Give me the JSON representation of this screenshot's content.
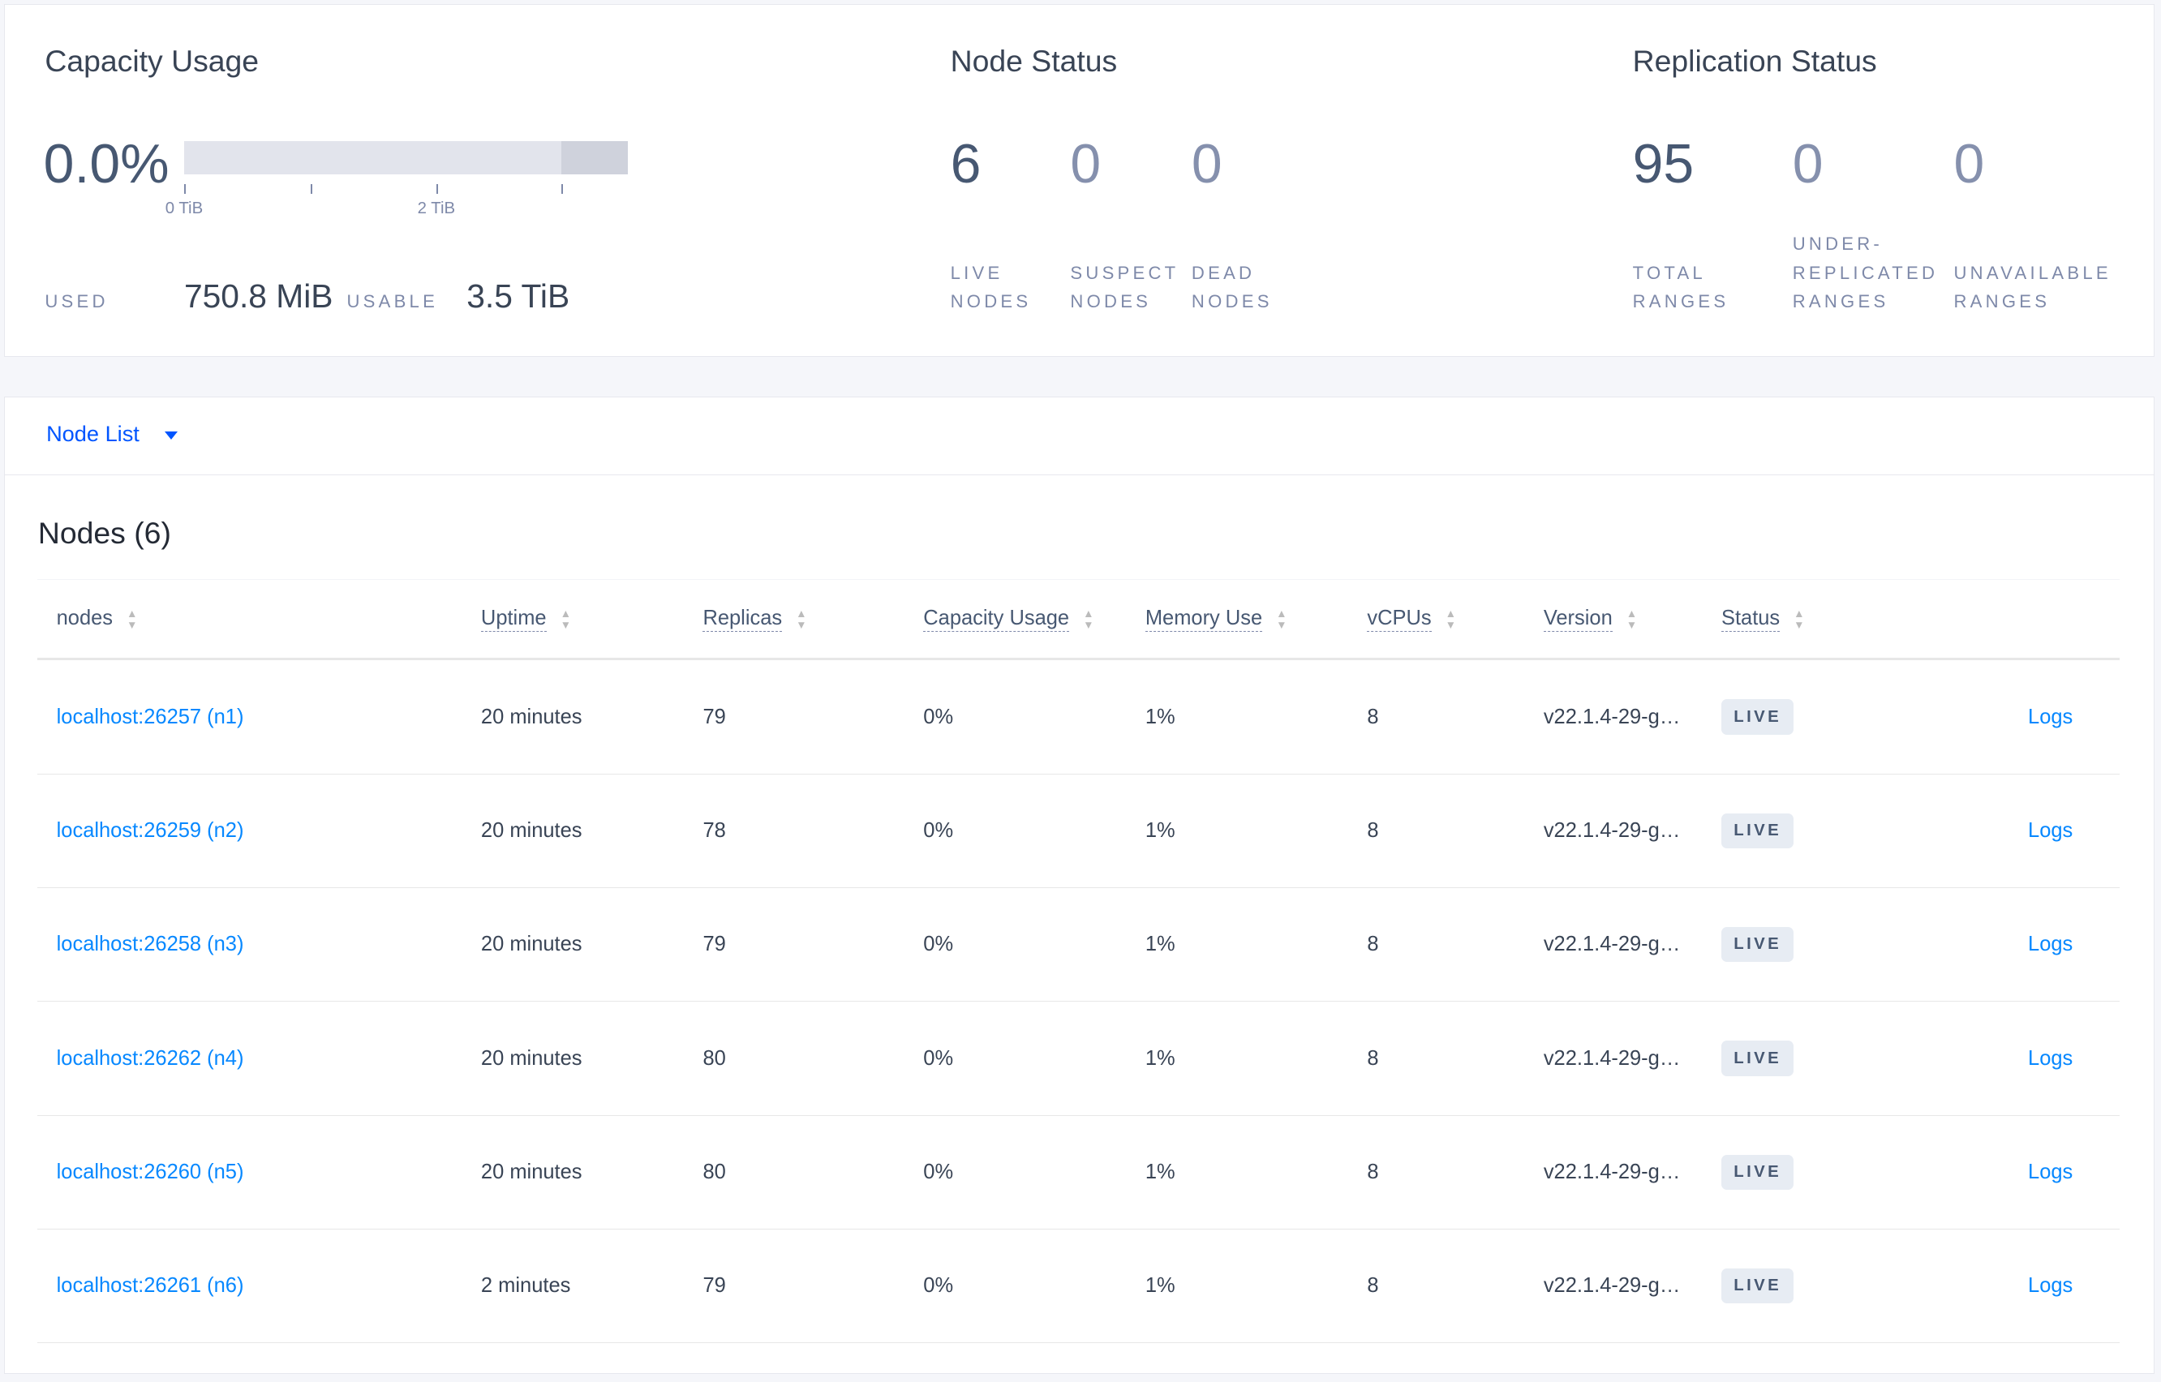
{
  "capacity": {
    "title": "Capacity Usage",
    "percent": "0.0%",
    "used_fraction": 0.0002,
    "usable_fraction_of_axis": 0.85,
    "ticks": [
      "0 TiB",
      "2 TiB"
    ],
    "used_label": "USED",
    "used_value": "750.8 MiB",
    "usable_label": "USABLE",
    "usable_value": "3.5 TiB"
  },
  "node_status": {
    "title": "Node Status",
    "stats": [
      {
        "value": "6",
        "l1": "LIVE",
        "l2": "NODES"
      },
      {
        "value": "0",
        "l1": "SUSPECT",
        "l2": "NODES"
      },
      {
        "value": "0",
        "l1": "DEAD",
        "l2": "NODES"
      }
    ]
  },
  "replication": {
    "title": "Replication Status",
    "stats": [
      {
        "value": "95",
        "l0": "",
        "l1": "TOTAL",
        "l2": "RANGES"
      },
      {
        "value": "0",
        "l0": "UNDER-",
        "l1": "REPLICATED",
        "l2": "RANGES"
      },
      {
        "value": "0",
        "l0": "",
        "l1": "UNAVAILABLE",
        "l2": "RANGES"
      }
    ]
  },
  "node_list": {
    "label": "Node List",
    "heading": "Nodes (6)",
    "columns": [
      "nodes",
      "Uptime",
      "Replicas",
      "Capacity Usage",
      "Memory Use",
      "vCPUs",
      "Version",
      "Status"
    ],
    "rows": [
      {
        "node": "localhost:26257 (n1)",
        "uptime": "20 minutes",
        "replicas": "79",
        "capacity": "0%",
        "memory": "1%",
        "vcpus": "8",
        "version": "v22.1.4-29-g…",
        "status": "LIVE",
        "logs": "Logs"
      },
      {
        "node": "localhost:26259 (n2)",
        "uptime": "20 minutes",
        "replicas": "78",
        "capacity": "0%",
        "memory": "1%",
        "vcpus": "8",
        "version": "v22.1.4-29-g…",
        "status": "LIVE",
        "logs": "Logs"
      },
      {
        "node": "localhost:26258 (n3)",
        "uptime": "20 minutes",
        "replicas": "79",
        "capacity": "0%",
        "memory": "1%",
        "vcpus": "8",
        "version": "v22.1.4-29-g…",
        "status": "LIVE",
        "logs": "Logs"
      },
      {
        "node": "localhost:26262 (n4)",
        "uptime": "20 minutes",
        "replicas": "80",
        "capacity": "0%",
        "memory": "1%",
        "vcpus": "8",
        "version": "v22.1.4-29-g…",
        "status": "LIVE",
        "logs": "Logs"
      },
      {
        "node": "localhost:26260 (n5)",
        "uptime": "20 minutes",
        "replicas": "80",
        "capacity": "0%",
        "memory": "1%",
        "vcpus": "8",
        "version": "v22.1.4-29-g…",
        "status": "LIVE",
        "logs": "Logs"
      },
      {
        "node": "localhost:26261 (n6)",
        "uptime": "2 minutes",
        "replicas": "79",
        "capacity": "0%",
        "memory": "1%",
        "vcpus": "8",
        "version": "v22.1.4-29-g…",
        "status": "LIVE",
        "logs": "Logs"
      }
    ]
  },
  "colors": {
    "link": "#0788ff",
    "dropdown": "#0055ff",
    "bg": "#f5f6fa"
  }
}
